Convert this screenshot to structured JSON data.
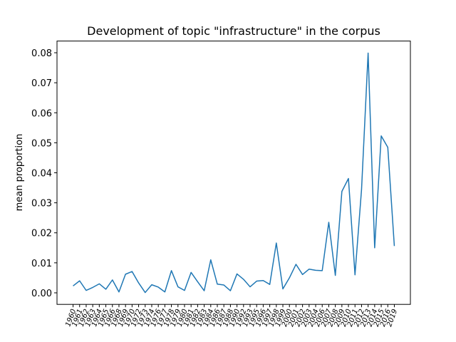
{
  "chart_data": {
    "type": "line",
    "title": "Development of topic \"infrastructure\" in the corpus",
    "y_label": "mean proportion",
    "categories": [
      "1960",
      "1961",
      "1962",
      "1963",
      "1964",
      "1965",
      "1966",
      "1968",
      "1969",
      "1970",
      "1972",
      "1973",
      "1974",
      "1976",
      "1977",
      "1978",
      "1979",
      "1980",
      "1981",
      "1982",
      "1983",
      "1984",
      "1986",
      "1987",
      "1988",
      "1990",
      "1992",
      "1993",
      "1995",
      "1996",
      "1997",
      "1998",
      "1999",
      "2000",
      "2001",
      "2002",
      "2003",
      "2004",
      "2006",
      "2007",
      "2008",
      "2009",
      "2010",
      "2011",
      "2012",
      "2013",
      "2014",
      "2015",
      "2016",
      "2019"
    ],
    "series": [
      {
        "name": "infrastructure",
        "color": "#1f77b4",
        "values": [
          0.0023,
          0.004,
          0.0008,
          0.0018,
          0.003,
          0.0012,
          0.0043,
          0.0003,
          0.0062,
          0.0071,
          0.0033,
          0.0001,
          0.0027,
          0.0019,
          0.0003,
          0.0074,
          0.002,
          0.0008,
          0.0068,
          0.0037,
          0.0007,
          0.011,
          0.0029,
          0.0026,
          0.0007,
          0.0063,
          0.0045,
          0.002,
          0.0039,
          0.0041,
          0.0028,
          0.0166,
          0.0013,
          0.005,
          0.0095,
          0.0061,
          0.0079,
          0.0075,
          0.0074,
          0.0235,
          0.0058,
          0.0338,
          0.0381,
          0.006,
          0.0345,
          0.0799,
          0.015,
          0.0523,
          0.0485,
          0.0156
        ]
      }
    ],
    "ylim": [
      -0.00385,
      0.0839
    ],
    "yticks": [
      {
        "value": 0,
        "label": "0.00"
      },
      {
        "value": 0.01,
        "label": "0.01"
      },
      {
        "value": 0.02,
        "label": "0.02"
      },
      {
        "value": 0.03,
        "label": "0.03"
      },
      {
        "value": 0.04,
        "label": "0.04"
      },
      {
        "value": 0.05,
        "label": "0.05"
      },
      {
        "value": 0.06,
        "label": "0.06"
      },
      {
        "value": 0.07,
        "label": "0.07"
      },
      {
        "value": 0.08,
        "label": "0.08"
      }
    ],
    "grid": false
  }
}
